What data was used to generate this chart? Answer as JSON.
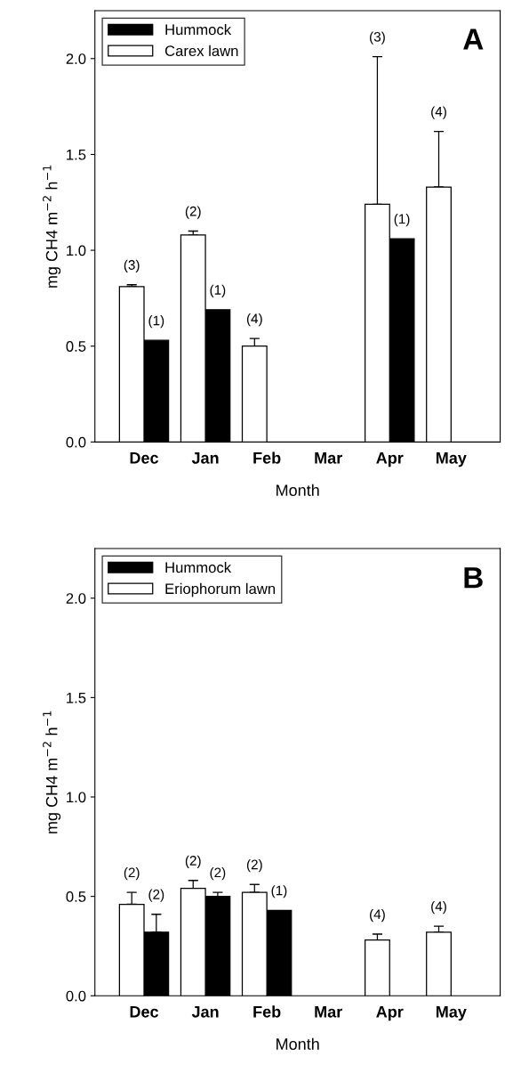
{
  "chart_data": [
    {
      "type": "bar",
      "xlabel": "Month",
      "ylabel": "mg CH4 m$^{−2}$ h$^{−1}$",
      "annotations": [
        "A",
        "(3)",
        "(1)",
        "(2)",
        "(1)",
        "(4)",
        "(3)",
        "(1)",
        "(4)"
      ],
      "categories": [
        "Dec",
        "Jan",
        "Feb",
        "Mar",
        "Apr",
        "May"
      ],
      "series": [
        {
          "name": "Hummock",
          "color": "#000000",
          "values": [
            0.53,
            0.69,
            null,
            null,
            1.06,
            null
          ]
        },
        {
          "name": "Carex lawn",
          "color": "#ffffff",
          "values": [
            0.81,
            1.08,
            0.5,
            null,
            1.24,
            1.33
          ],
          "errors": [
            [
              0.81,
              0.82
            ],
            [
              1.08,
              1.1
            ],
            [
              0.5,
              0.54
            ],
            null,
            [
              1.24,
              2.01
            ],
            [
              1.33,
              1.62
            ]
          ]
        }
      ],
      "ylim": [
        0,
        2.25
      ],
      "yticks": [
        {
          "value": 0,
          "label": "0.0"
        },
        {
          "value": 0.5,
          "label": "0.5"
        },
        {
          "value": 1,
          "label": "1.0"
        },
        {
          "value": 1.5,
          "label": "1.5"
        },
        {
          "value": 2,
          "label": "2.0"
        }
      ],
      "legend": "top left",
      "grid": false
    },
    {
      "type": "bar",
      "xlabel": "Month",
      "ylabel": "mg CH4 m$^{−2}$ h$^{−1}$",
      "annotations": [
        "B",
        "(2)",
        "(2)",
        "(2)",
        "(2)",
        "(2)",
        "(1)",
        "(4)",
        "(4)"
      ],
      "categories": [
        "Dec",
        "Jan",
        "Feb",
        "Mar",
        "Apr",
        "May"
      ],
      "series": [
        {
          "name": "Hummock",
          "color": "#000000",
          "values": [
            0.32,
            0.5,
            0.43,
            null,
            null,
            null
          ],
          "errors": [
            [
              0.32,
              0.41
            ],
            [
              0.5,
              0.52
            ],
            null,
            null,
            null,
            null
          ]
        },
        {
          "name": "Eriophorum lawn",
          "color": "#ffffff",
          "values": [
            0.46,
            0.54,
            0.52,
            null,
            0.28,
            0.32
          ],
          "errors": [
            [
              0.46,
              0.52
            ],
            [
              0.54,
              0.58
            ],
            [
              0.52,
              0.56
            ],
            null,
            [
              0.28,
              0.31
            ],
            [
              0.32,
              0.35
            ]
          ]
        }
      ],
      "ylim": [
        0,
        2.25
      ],
      "yticks": [
        {
          "value": 0,
          "label": "0.0"
        },
        {
          "value": 0.5,
          "label": "0.5"
        },
        {
          "value": 1,
          "label": "1.0"
        },
        {
          "value": 1.5,
          "label": "1.5"
        },
        {
          "value": 2,
          "label": "2.0"
        }
      ],
      "legend": "top left",
      "grid": false
    }
  ]
}
